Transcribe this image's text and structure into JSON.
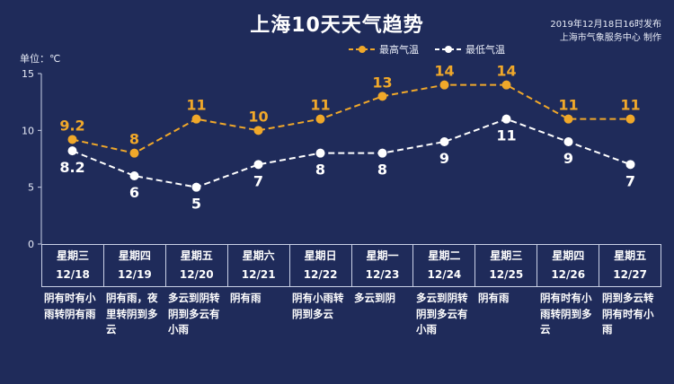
{
  "title": "上海10天天气趋势",
  "source": {
    "line1": "2019年12月18日16时发布",
    "line2": "上海市气象服务中心 制作"
  },
  "unit_label": "单位：℃",
  "colors": {
    "background": "#1f2b5a",
    "high": "#f0a82a",
    "low": "#ffffff"
  },
  "chart_data": {
    "type": "line",
    "title": "上海10天天气趋势",
    "ylabel": "单位：℃",
    "ylim": [
      0,
      15
    ],
    "yticks": [
      0,
      5,
      10,
      15
    ],
    "legend_position": "top-right",
    "categories": [
      "12/18",
      "12/19",
      "12/20",
      "12/21",
      "12/22",
      "12/23",
      "12/24",
      "12/25",
      "12/26",
      "12/27"
    ],
    "series": [
      {
        "name": "最高气温",
        "color": "#f0a82a",
        "style": "dashed",
        "values": [
          9.2,
          8,
          11,
          10,
          11,
          13,
          14,
          14,
          11,
          11
        ]
      },
      {
        "name": "最低气温",
        "color": "#ffffff",
        "style": "dashed",
        "values": [
          8.2,
          6,
          5,
          7,
          8,
          8,
          9,
          11,
          9,
          7
        ]
      }
    ]
  },
  "days": [
    {
      "weekday": "星期三",
      "date": "12/18",
      "desc": "阴有时有小雨转阴有雨"
    },
    {
      "weekday": "星期四",
      "date": "12/19",
      "desc": "阴有雨，夜里转阴到多云"
    },
    {
      "weekday": "星期五",
      "date": "12/20",
      "desc": "多云到阴转阴到多云有小雨"
    },
    {
      "weekday": "星期六",
      "date": "12/21",
      "desc": "阴有雨"
    },
    {
      "weekday": "星期日",
      "date": "12/22",
      "desc": "阴有小雨转阴到多云"
    },
    {
      "weekday": "星期一",
      "date": "12/23",
      "desc": "多云到阴"
    },
    {
      "weekday": "星期二",
      "date": "12/24",
      "desc": "多云到阴转阴到多云有小雨"
    },
    {
      "weekday": "星期三",
      "date": "12/25",
      "desc": "阴有雨"
    },
    {
      "weekday": "星期四",
      "date": "12/26",
      "desc": "阴有时有小雨转阴到多云"
    },
    {
      "weekday": "星期五",
      "date": "12/27",
      "desc": "阴到多云转阴有时有小雨"
    }
  ]
}
